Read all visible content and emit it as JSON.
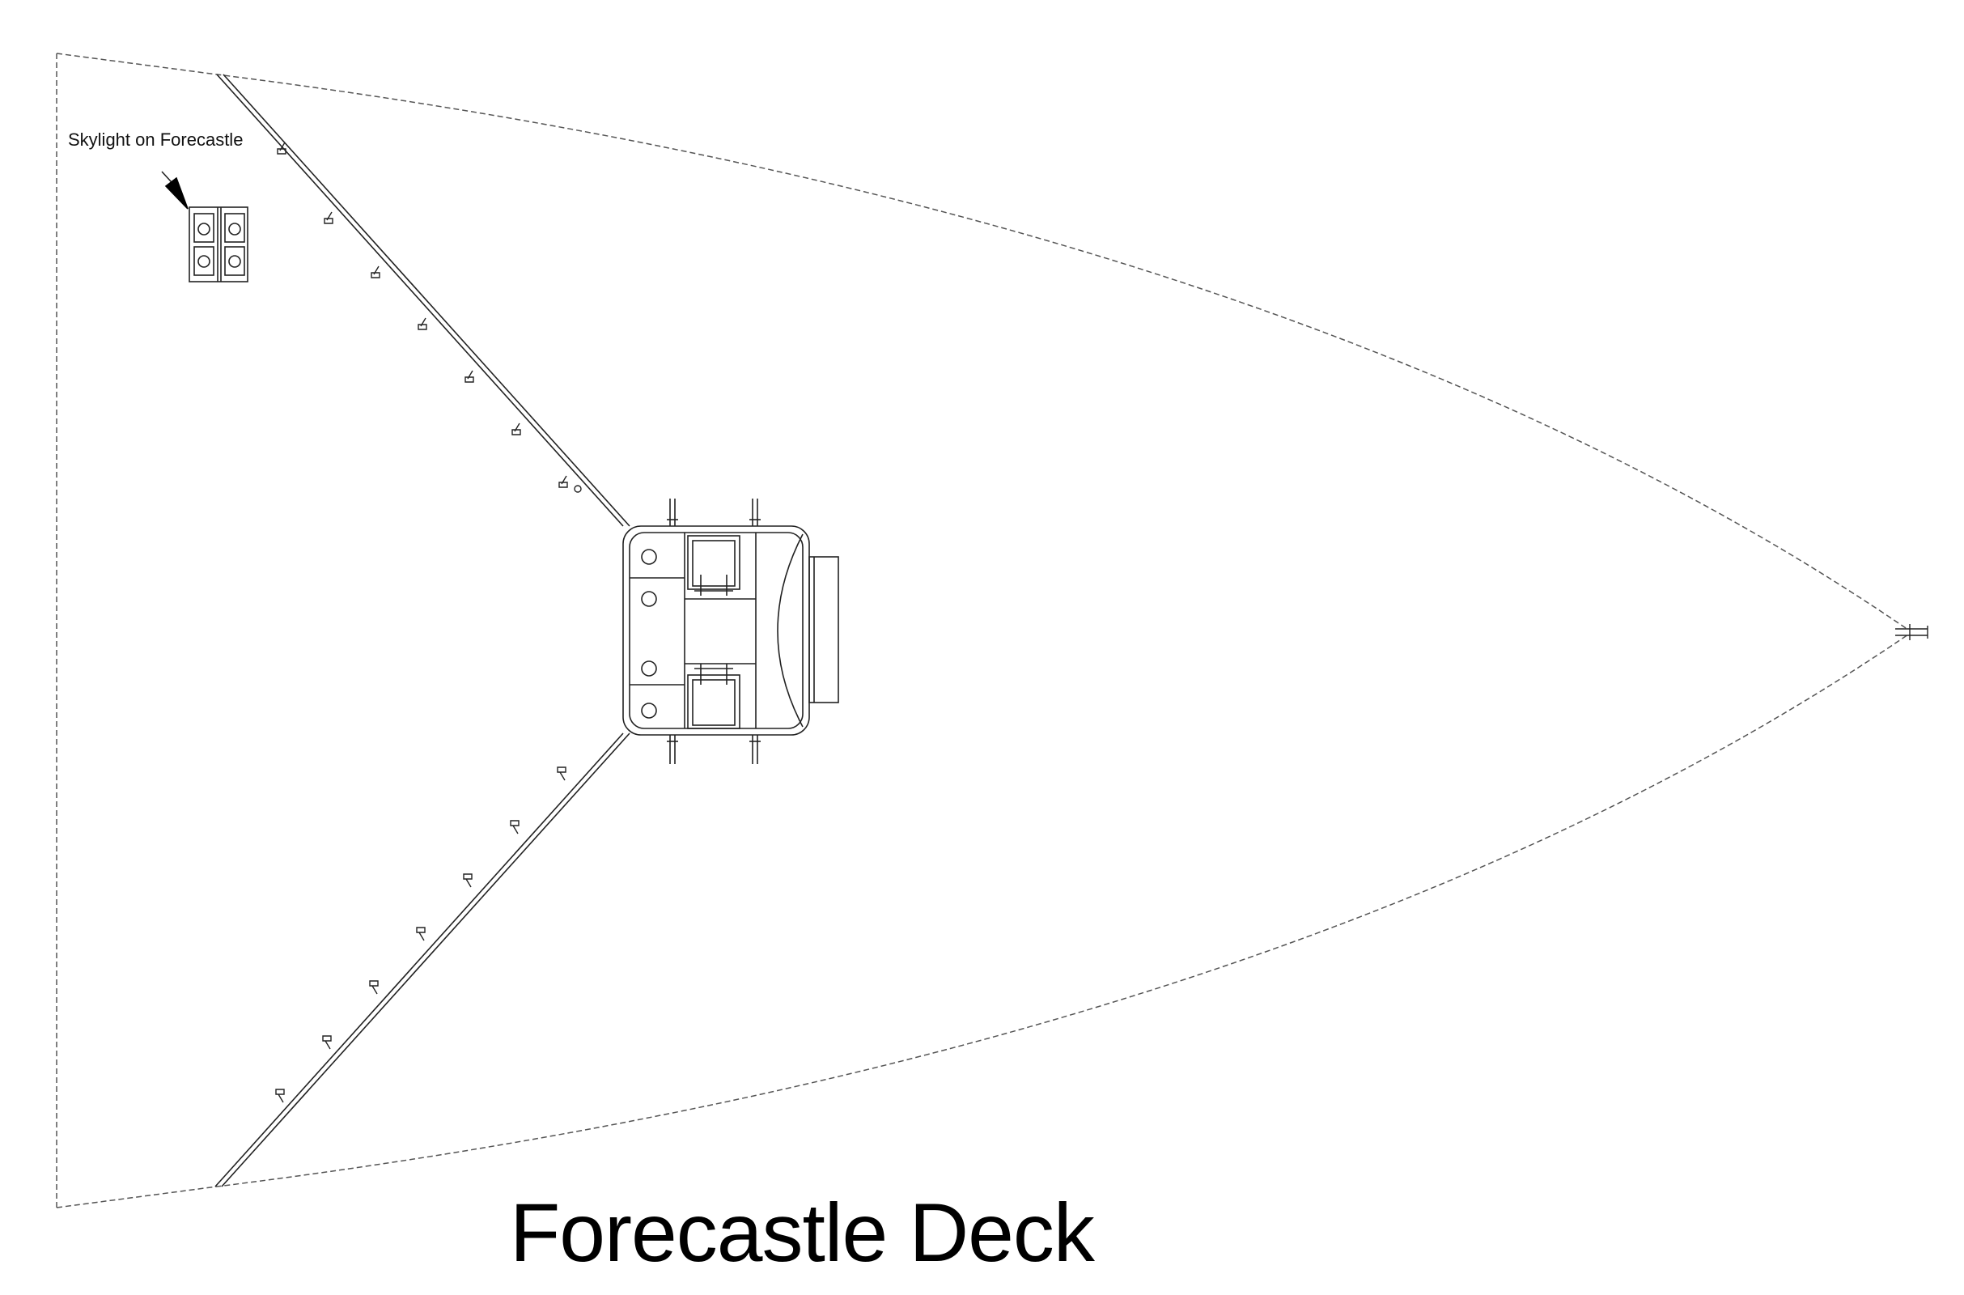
{
  "title": "Forecastle Deck",
  "callout": {
    "label": "Skylight on Forecastle"
  },
  "colors": {
    "line": "#222222",
    "hull_outline": "#555555",
    "background": "#ffffff"
  }
}
